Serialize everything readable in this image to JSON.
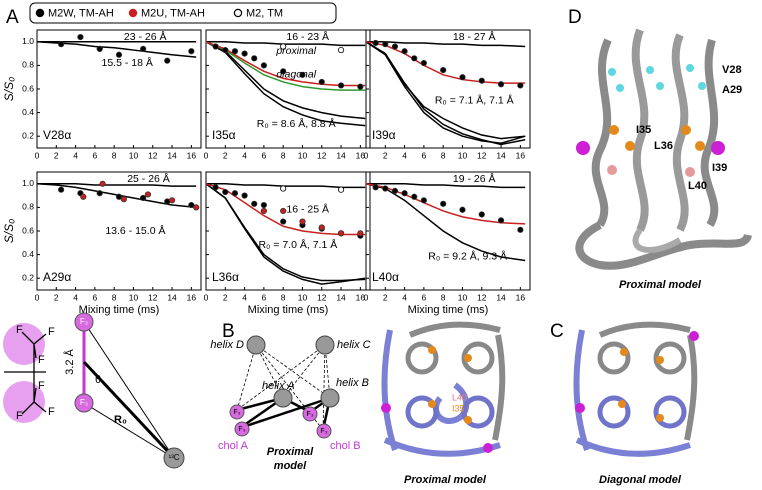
{
  "panel_letters": [
    "A",
    "B",
    "C",
    "D"
  ],
  "legend": [
    {
      "name": "M2W, TM-AH",
      "color": "#000000",
      "style": "filled"
    },
    {
      "name": "M2U, TM-AH",
      "color": "#c8201e",
      "style": "filled"
    },
    {
      "name": "M2, TM",
      "color": "#000000",
      "style": "open"
    }
  ],
  "chart_data": [
    {
      "type": "line",
      "label": "V28α",
      "ylabel": "S/S₀",
      "xlim": [
        0,
        17
      ],
      "xticks": [
        0,
        2,
        4,
        6,
        8,
        10,
        12,
        14,
        16
      ],
      "ylim": [
        0.1,
        1.1
      ],
      "yticks": [
        0.2,
        0.4,
        0.6,
        0.8,
        {
          "value": 1,
          "label": "1.0"
        }
      ],
      "annotations": [
        {
          "text": "23 - 26 Å",
          "color": "#000000"
        },
        {
          "text": "15.5 - 18 Å",
          "color": "#000000"
        }
      ],
      "series": [
        {
          "style": "line",
          "color": "#000000",
          "x": [
            0,
            2,
            4,
            6,
            8,
            10,
            12,
            14,
            16.5
          ],
          "values": [
            1,
            1,
            1,
            1,
            1,
            1,
            1,
            1,
            1
          ]
        },
        {
          "style": "line",
          "color": "#000000",
          "x": [
            0,
            2,
            4,
            6,
            8,
            10,
            12,
            14,
            16.5
          ],
          "values": [
            1,
            0.99,
            0.98,
            0.96,
            0.95,
            0.93,
            0.91,
            0.89,
            0.87
          ]
        },
        {
          "style": "filled",
          "color": "#000000",
          "x": [
            2.5,
            4.5,
            6.5,
            8.5,
            11,
            13.5,
            16
          ],
          "values": [
            0.98,
            1.04,
            0.94,
            0.89,
            0.94,
            0.84,
            0.92
          ]
        }
      ]
    },
    {
      "type": "line",
      "label": "I35α",
      "xlim": [
        0,
        17
      ],
      "xticks": [
        0,
        2,
        4,
        6,
        8,
        10,
        12,
        14,
        16
      ],
      "ylim": [
        0.1,
        1.1
      ],
      "yticks": [
        0.2,
        0.4,
        0.6,
        0.8,
        {
          "value": 1,
          "label": "1.0"
        }
      ],
      "annotations": [
        {
          "text": "16 - 23 Å",
          "color": "#000000"
        },
        {
          "text": "proximal",
          "color": "#c8201e"
        },
        {
          "text": "diagonal",
          "color": "#2e9a2e"
        },
        {
          "text": "R₀ = 8.6 Å, 8.8 Å",
          "color": "#000000"
        }
      ],
      "series": [
        {
          "style": "line",
          "color": "#000000",
          "x": [
            0,
            2,
            4,
            6,
            8,
            10,
            12,
            14,
            16.5
          ],
          "values": [
            1,
            1,
            0.99,
            0.99,
            0.98,
            0.98,
            0.98,
            0.97,
            0.97
          ]
        },
        {
          "style": "line",
          "color": "#000000",
          "x": [
            0,
            2,
            4,
            6,
            8,
            10,
            12,
            14,
            16.5
          ],
          "values": [
            1,
            0.92,
            0.76,
            0.6,
            0.5,
            0.44,
            0.4,
            0.37,
            0.35
          ]
        },
        {
          "style": "line",
          "color": "#000000",
          "x": [
            0,
            2,
            4,
            6,
            8,
            10,
            12,
            14,
            16.5
          ],
          "values": [
            1,
            0.91,
            0.73,
            0.56,
            0.45,
            0.38,
            0.33,
            0.31,
            0.29
          ]
        },
        {
          "style": "line",
          "color": "#2e9a2e",
          "x": [
            0,
            2,
            4,
            6,
            8,
            10,
            12,
            14,
            16.5
          ],
          "values": [
            1,
            0.93,
            0.82,
            0.72,
            0.66,
            0.62,
            0.6,
            0.59,
            0.59
          ]
        },
        {
          "style": "line",
          "color": "#c8201e",
          "x": [
            0,
            2,
            4,
            6,
            8,
            10,
            12,
            14,
            16.5
          ],
          "values": [
            1,
            0.94,
            0.84,
            0.75,
            0.69,
            0.66,
            0.64,
            0.63,
            0.63
          ]
        },
        {
          "style": "filled",
          "color": "#000000",
          "x": [
            1,
            2,
            3,
            4,
            5,
            6,
            8,
            10,
            12,
            14,
            16
          ],
          "values": [
            0.96,
            0.93,
            0.92,
            0.9,
            0.86,
            0.8,
            0.75,
            0.72,
            0.66,
            0.63,
            0.62
          ]
        },
        {
          "style": "open",
          "color": "#000000",
          "x": [
            8,
            14
          ],
          "values": [
            0.96,
            0.93
          ]
        }
      ]
    },
    {
      "type": "line",
      "label": "I39α",
      "xlim": [
        0,
        17
      ],
      "xticks": [
        0,
        2,
        4,
        6,
        8,
        10,
        12,
        14,
        16
      ],
      "ylim": [
        0.1,
        1.1
      ],
      "yticks": [
        0.2,
        0.4,
        0.6,
        0.8,
        {
          "value": 1,
          "label": "1.0"
        }
      ],
      "annotations": [
        {
          "text": "18 - 27 Å",
          "color": "#000000"
        },
        {
          "text": "R₀ = 7.1 Å, 7.1 Å",
          "color": "#000000"
        }
      ],
      "series": [
        {
          "style": "line",
          "color": "#000000",
          "x": [
            0,
            2,
            4,
            6,
            8,
            10,
            12,
            14,
            16.5
          ],
          "values": [
            1,
            1,
            0.99,
            0.99,
            0.98,
            0.98,
            0.97,
            0.97,
            0.96
          ]
        },
        {
          "style": "line",
          "color": "#000000",
          "x": [
            0,
            2,
            4,
            6,
            8,
            10,
            12,
            14,
            16.5
          ],
          "values": [
            1,
            0.9,
            0.65,
            0.43,
            0.3,
            0.22,
            0.17,
            0.13,
            0.17
          ]
        },
        {
          "style": "line",
          "color": "#000000",
          "x": [
            0,
            2,
            4,
            6,
            8,
            10,
            12,
            14,
            16.5
          ],
          "values": [
            1,
            0.89,
            0.62,
            0.4,
            0.27,
            0.2,
            0.16,
            0.14,
            0.2
          ]
        },
        {
          "style": "line",
          "color": "#000000",
          "x": [
            0,
            2,
            4,
            6,
            8,
            10,
            12,
            14,
            16.5
          ],
          "values": [
            1,
            0.9,
            0.64,
            0.45,
            0.35,
            0.27,
            0.21,
            0.18,
            0.2
          ]
        },
        {
          "style": "line",
          "color": "#c8201e",
          "x": [
            0,
            2,
            4,
            6,
            8,
            10,
            12,
            14,
            16.5
          ],
          "values": [
            1,
            0.97,
            0.9,
            0.8,
            0.72,
            0.68,
            0.66,
            0.65,
            0.65
          ]
        },
        {
          "style": "filled",
          "color": "#000000",
          "x": [
            1,
            2,
            3,
            4,
            5,
            6,
            8,
            10,
            12,
            14,
            16
          ],
          "values": [
            0.99,
            0.98,
            0.96,
            0.92,
            0.86,
            0.82,
            0.76,
            0.7,
            0.67,
            0.64,
            0.63
          ]
        }
      ]
    },
    {
      "type": "line",
      "label": "A29α",
      "ylabel": "S/S₀",
      "xlabel": "Mixing time (ms)",
      "xlim": [
        0,
        17
      ],
      "xticks": [
        0,
        2,
        4,
        6,
        8,
        10,
        12,
        14,
        16
      ],
      "ylim": [
        0.1,
        1.1
      ],
      "yticks": [
        0.2,
        0.4,
        0.6,
        0.8,
        {
          "value": 1,
          "label": "1.0"
        }
      ],
      "annotations": [
        {
          "text": "25 - 26 Å",
          "color": "#000000"
        },
        {
          "text": "13.6 - 15.0 Å",
          "color": "#000000"
        }
      ],
      "series": [
        {
          "style": "line",
          "color": "#000000",
          "x": [
            0,
            2,
            4,
            6,
            8,
            10,
            12,
            14,
            16.5
          ],
          "values": [
            1,
            1,
            1,
            0.99,
            0.99,
            0.99,
            0.99,
            0.98,
            0.98
          ]
        },
        {
          "style": "line",
          "color": "#000000",
          "x": [
            0,
            2,
            4,
            6,
            8,
            10,
            12,
            14,
            16.5
          ],
          "values": [
            1,
            0.99,
            0.97,
            0.94,
            0.91,
            0.88,
            0.85,
            0.82,
            0.8
          ]
        },
        {
          "style": "filled",
          "color": "#000000",
          "x": [
            2.5,
            4.5,
            6.5,
            8.5,
            11,
            13.5,
            16
          ],
          "values": [
            0.95,
            0.92,
            0.92,
            0.89,
            0.88,
            0.85,
            0.82
          ]
        },
        {
          "style": "filled",
          "color": "#c8201e",
          "x": [
            4.8,
            6.8,
            9,
            11.5,
            14,
            16.5
          ],
          "values": [
            0.89,
            1,
            0.87,
            0.91,
            0.86,
            0.8
          ]
        }
      ]
    },
    {
      "type": "line",
      "label": "L36α",
      "xlabel": "Mixing time (ms)",
      "xlim": [
        0,
        17
      ],
      "xticks": [
        0,
        2,
        4,
        6,
        8,
        10,
        12,
        14,
        16
      ],
      "ylim": [
        0.1,
        1.1
      ],
      "yticks": [
        0.2,
        0.4,
        0.6,
        0.8,
        {
          "value": 1,
          "label": "1.0"
        }
      ],
      "annotations": [
        {
          "text": "16 - 25 Å",
          "color": "#000000"
        },
        {
          "text": "R₀ = 7.0 Å, 7.1 Å",
          "color": "#000000"
        }
      ],
      "series": [
        {
          "style": "line",
          "color": "#000000",
          "x": [
            0,
            2,
            4,
            6,
            8,
            10,
            12,
            14,
            16.5
          ],
          "values": [
            1,
            1,
            0.99,
            0.99,
            0.98,
            0.98,
            0.98,
            0.97,
            0.97
          ]
        },
        {
          "style": "line",
          "color": "#000000",
          "x": [
            0,
            2,
            4,
            6,
            8,
            10,
            12,
            14,
            16.5
          ],
          "values": [
            1,
            0.88,
            0.62,
            0.38,
            0.26,
            0.19,
            0.15,
            0.17,
            0.2
          ]
        },
        {
          "style": "line",
          "color": "#000000",
          "x": [
            0,
            2,
            4,
            6,
            8,
            10,
            12,
            14,
            16.5
          ],
          "values": [
            1,
            0.88,
            0.63,
            0.4,
            0.28,
            0.21,
            0.18,
            0.18,
            0.19
          ]
        },
        {
          "style": "line",
          "color": "#c8201e",
          "x": [
            0,
            2,
            4,
            6,
            8,
            10,
            12,
            14,
            16.5
          ],
          "values": [
            1,
            0.95,
            0.84,
            0.73,
            0.64,
            0.6,
            0.58,
            0.57,
            0.57
          ]
        },
        {
          "style": "filled",
          "color": "#000000",
          "x": [
            1,
            2,
            3,
            4,
            5,
            6,
            8,
            10,
            12,
            14,
            16
          ],
          "values": [
            0.97,
            0.93,
            0.92,
            0.9,
            0.83,
            0.82,
            0.68,
            0.65,
            0.62,
            0.58,
            0.56
          ]
        },
        {
          "style": "filled",
          "color": "#c8201e",
          "x": [
            6,
            8,
            10,
            12,
            14,
            16
          ],
          "values": [
            0.77,
            0.77,
            0.68,
            0.63,
            0.58,
            0.58
          ]
        },
        {
          "style": "open",
          "color": "#000000",
          "x": [
            8,
            14
          ],
          "values": [
            0.96,
            0.95
          ]
        }
      ]
    },
    {
      "type": "line",
      "label": "L40α",
      "xlabel": "Mixing time (ms)",
      "xlim": [
        0,
        17
      ],
      "xticks": [
        0,
        2,
        4,
        6,
        8,
        10,
        12,
        14,
        16
      ],
      "ylim": [
        0.1,
        1.1
      ],
      "yticks": [
        0.2,
        0.4,
        0.6,
        0.8,
        {
          "value": 1,
          "label": "1.0"
        }
      ],
      "annotations": [
        {
          "text": "19 - 26 Å",
          "color": "#000000"
        },
        {
          "text": "R₀ = 9.2 Å, 9.3 Å",
          "color": "#000000"
        }
      ],
      "series": [
        {
          "style": "line",
          "color": "#000000",
          "x": [
            0,
            2,
            4,
            6,
            8,
            10,
            12,
            14,
            16.5
          ],
          "values": [
            1,
            1,
            1,
            0.99,
            0.99,
            0.98,
            0.98,
            0.97,
            0.97
          ]
        },
        {
          "style": "line",
          "color": "#000000",
          "x": [
            0,
            2,
            4,
            6,
            8,
            10,
            12,
            14,
            16.5
          ],
          "values": [
            1,
            0.96,
            0.86,
            0.73,
            0.6,
            0.5,
            0.43,
            0.38,
            0.35
          ]
        },
        {
          "style": "line",
          "color": "#c8201e",
          "x": [
            0,
            2,
            4,
            6,
            8,
            10,
            12,
            14,
            16.5
          ],
          "values": [
            1,
            0.97,
            0.91,
            0.84,
            0.77,
            0.72,
            0.69,
            0.67,
            0.66
          ]
        },
        {
          "style": "filled",
          "color": "#000000",
          "x": [
            1,
            2,
            3,
            4,
            5,
            6,
            8,
            10,
            12,
            14,
            16
          ],
          "values": [
            0.97,
            0.96,
            0.94,
            0.92,
            0.89,
            0.86,
            0.83,
            0.78,
            0.74,
            0.69,
            0.61
          ]
        }
      ]
    }
  ],
  "geometry": {
    "fluorines": [
      "F",
      "F",
      "F",
      "F",
      "F",
      "F"
    ],
    "f3_top": "F₃",
    "f3_bottom": "F₃",
    "distance": "3.2 Å",
    "angle": "θ",
    "r0": "R₀",
    "carbon": "¹³C"
  },
  "network": {
    "helices": [
      "helix D",
      "helix C",
      "helix A",
      "helix B"
    ],
    "fluorines": [
      "F₃",
      "F₃",
      "F₃",
      "F₃"
    ],
    "chol": [
      "chol A",
      "chol B"
    ],
    "model": [
      "Proximal",
      "model"
    ]
  },
  "top_views": {
    "residue_labels": [
      "L40",
      "I35"
    ],
    "models": [
      "Proximal model",
      "Diagonal model"
    ]
  },
  "structure": {
    "residues": [
      "V28",
      "A29",
      "I35",
      "L36",
      "I39",
      "L40"
    ],
    "model": "Proximal model"
  }
}
